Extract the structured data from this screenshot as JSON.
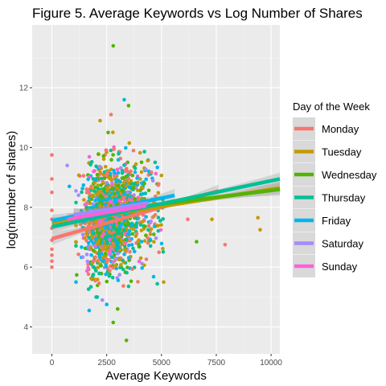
{
  "chart_data": {
    "type": "scatter",
    "title": "Figure 5. Average Keywords vs Log Number of Shares",
    "xlabel": "Average Keywords",
    "ylabel": "log(number of shares)",
    "xlim": [
      -900,
      10400
    ],
    "ylim": [
      3.1,
      14.1
    ],
    "x_ticks": [
      0,
      2500,
      5000,
      7500,
      10000
    ],
    "x_tick_labels": [
      "0",
      "2500",
      "5000",
      "7500",
      "10000"
    ],
    "y_ticks": [
      4,
      6,
      8,
      10,
      12
    ],
    "y_tick_labels": [
      "4",
      "6",
      "8",
      "10",
      "12"
    ],
    "grid": true,
    "legend": {
      "title": "Day of the Week",
      "position": "right"
    },
    "series": [
      {
        "name": "Monday",
        "color": "#F8766D",
        "trend": {
          "x": [
            0,
            7600
          ],
          "y": [
            6.95,
            8.55
          ]
        }
      },
      {
        "name": "Tuesday",
        "color": "#C49A00",
        "trend": {
          "x": [
            0,
            10400
          ],
          "y": [
            7.45,
            8.65
          ]
        }
      },
      {
        "name": "Wednesday",
        "color": "#53B400",
        "trend": {
          "x": [
            1000,
            10400
          ],
          "y": [
            7.75,
            8.6
          ]
        }
      },
      {
        "name": "Thursday",
        "color": "#00C094",
        "trend": {
          "x": [
            0,
            10400
          ],
          "y": [
            7.35,
            8.95
          ]
        }
      },
      {
        "name": "Friday",
        "color": "#00B6EB",
        "trend": {
          "x": [
            0,
            5600
          ],
          "y": [
            7.55,
            8.4
          ]
        }
      },
      {
        "name": "Saturday",
        "color": "#A58AFF",
        "trend": {
          "x": [
            1000,
            4400
          ],
          "y": [
            7.75,
            8.15
          ]
        }
      },
      {
        "name": "Sunday",
        "color": "#FB61D7",
        "trend": {
          "x": [
            700,
            4300
          ],
          "y": [
            7.6,
            8.05
          ]
        }
      }
    ],
    "outliers": [
      {
        "s": 2,
        "x": 2800,
        "y": 13.4
      },
      {
        "s": 0,
        "x": 2700,
        "y": 11.1
      },
      {
        "s": 4,
        "x": 3300,
        "y": 11.6
      },
      {
        "s": 2,
        "x": 3500,
        "y": 11.4
      },
      {
        "s": 1,
        "x": 2200,
        "y": 10.9
      },
      {
        "s": 0,
        "x": 0,
        "y": 9.75
      },
      {
        "s": 0,
        "x": 0,
        "y": 8.95
      },
      {
        "s": 0,
        "x": 0,
        "y": 8.5
      },
      {
        "s": 0,
        "x": 0,
        "y": 7.9
      },
      {
        "s": 0,
        "x": 0,
        "y": 7.6
      },
      {
        "s": 0,
        "x": 0,
        "y": 7.3
      },
      {
        "s": 0,
        "x": 0,
        "y": 6.9
      },
      {
        "s": 0,
        "x": 0,
        "y": 6.6
      },
      {
        "s": 0,
        "x": 0,
        "y": 6.4
      },
      {
        "s": 0,
        "x": 0,
        "y": 6.2
      },
      {
        "s": 0,
        "x": 0,
        "y": 6.0
      },
      {
        "s": 5,
        "x": 700,
        "y": 9.4
      },
      {
        "s": 4,
        "x": 800,
        "y": 8.7
      },
      {
        "s": 1,
        "x": 9400,
        "y": 7.65
      },
      {
        "s": 1,
        "x": 9500,
        "y": 7.25
      },
      {
        "s": 0,
        "x": 7900,
        "y": 6.75
      },
      {
        "s": 2,
        "x": 6600,
        "y": 6.85
      },
      {
        "s": 1,
        "x": 7300,
        "y": 7.6
      },
      {
        "s": 0,
        "x": 6200,
        "y": 7.6
      },
      {
        "s": 2,
        "x": 6400,
        "y": 8.3
      },
      {
        "s": 1,
        "x": 5100,
        "y": 5.5
      },
      {
        "s": 2,
        "x": 2800,
        "y": 4.15
      },
      {
        "s": 2,
        "x": 3400,
        "y": 3.55
      },
      {
        "s": 2,
        "x": 3000,
        "y": 4.6
      },
      {
        "s": 4,
        "x": 2500,
        "y": 4.75
      },
      {
        "s": 4,
        "x": 1700,
        "y": 4.55
      },
      {
        "s": 5,
        "x": 2300,
        "y": 4.9
      }
    ]
  }
}
